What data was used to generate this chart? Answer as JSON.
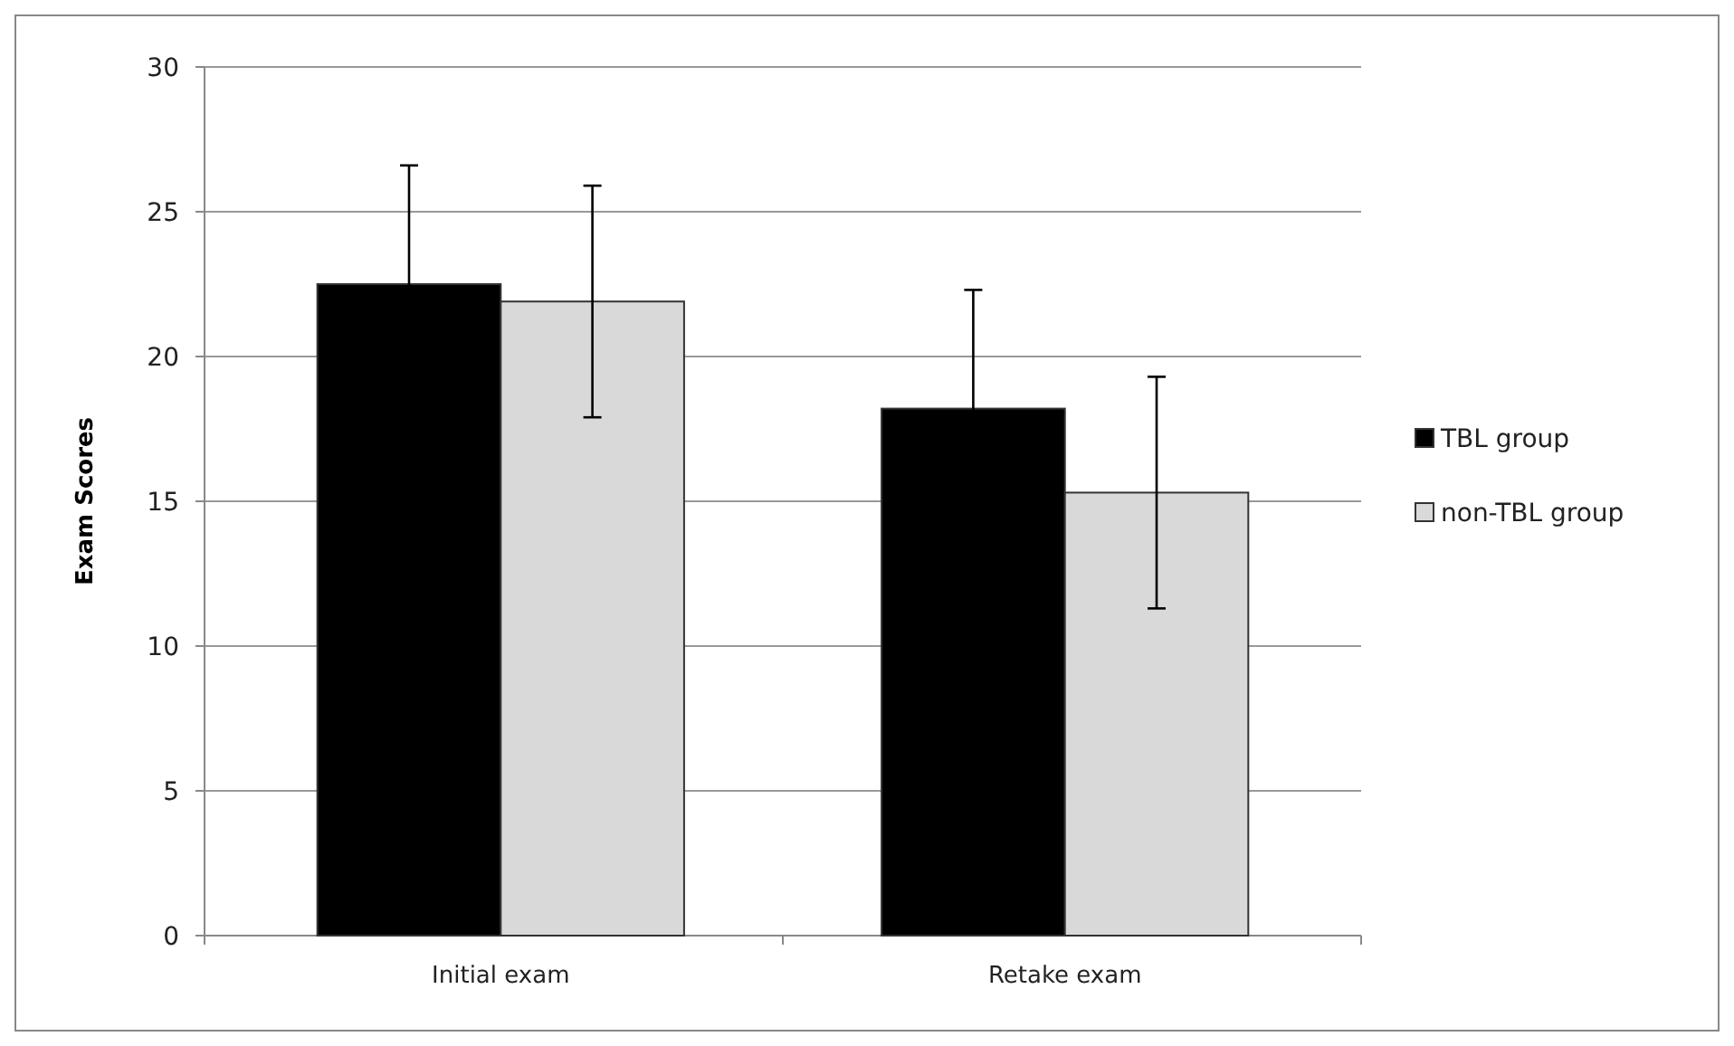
{
  "chart_data": {
    "type": "bar",
    "ylabel": "Exam Scores",
    "categories": [
      "Initial exam",
      "Retake exam"
    ],
    "series": [
      {
        "name": "TBL group",
        "color": "#000000",
        "values": [
          22.5,
          18.2
        ],
        "errors": [
          4.1,
          4.1
        ]
      },
      {
        "name": "non-TBL group",
        "color": "#d9d9d9",
        "values": [
          21.9,
          15.3
        ],
        "errors": [
          4.0,
          4.0
        ]
      }
    ],
    "ylim": [
      0,
      30
    ],
    "yticks": [
      0,
      5,
      10,
      15,
      20,
      25,
      30
    ],
    "grid": "y",
    "legend": "right"
  }
}
